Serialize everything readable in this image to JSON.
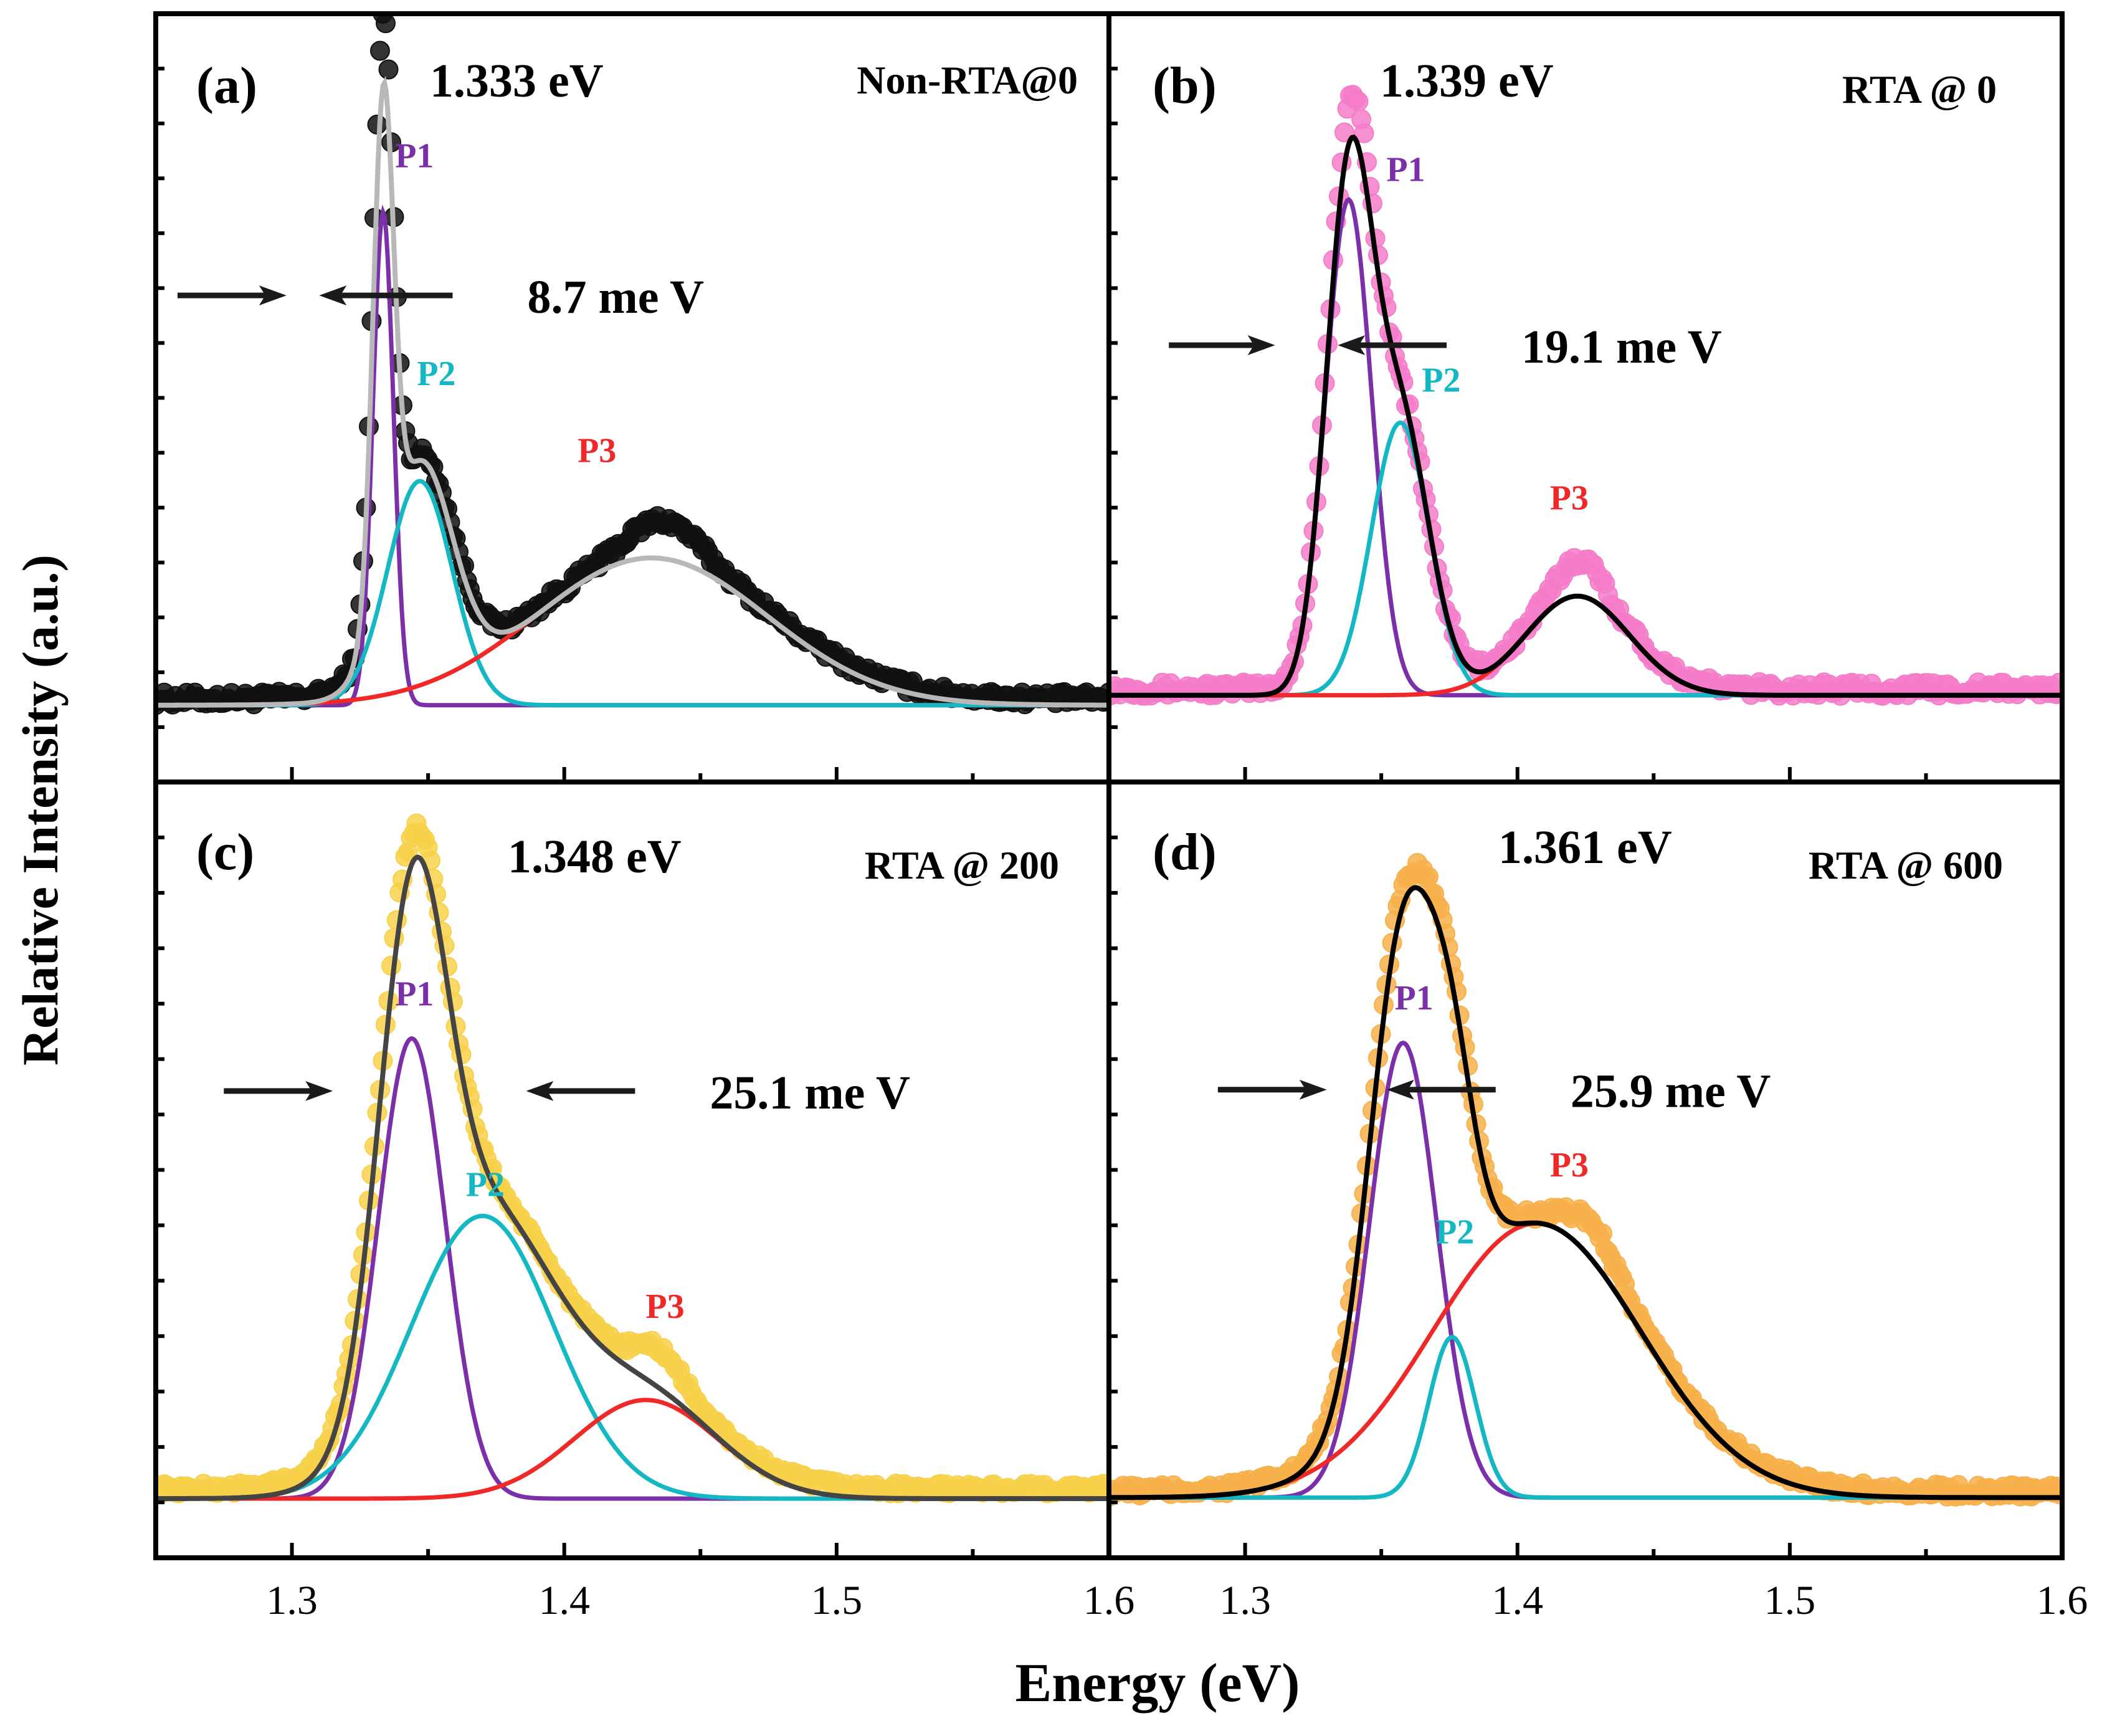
{
  "figure": {
    "ylabel": "Relative Intensity (a.u.)",
    "xlabel": "Energy (eV)",
    "colors": {
      "axis": "#000000",
      "p1": "#7b2fa8",
      "p2": "#14b8c2",
      "p3": "#f02828",
      "arrow": "#1a1a1a"
    }
  },
  "chart_data": [
    {
      "id": "a",
      "type": "line",
      "panel_label": "(a)",
      "peak_label": "1.333 eV",
      "condition": "Non-RTA@0",
      "fwhm_label": "8.7 me V",
      "xlim": [
        1.25,
        1.6
      ],
      "xticks": [
        1.3,
        1.4,
        1.5,
        1.6
      ],
      "ylim": [
        -0.12,
        1.08
      ],
      "baseline": 0.0,
      "exp_color": "#111111",
      "fit_color": "#b8b8b8",
      "fwhm_arrows": {
        "left": [
          1.258,
          1.298
        ],
        "right": [
          1.31,
          1.359
        ],
        "y": 0.64
      },
      "peaks": [
        {
          "name": "P1",
          "center": 1.3335,
          "amp": 0.77,
          "fwhm": 0.0089,
          "label_x": 1.345,
          "label_y": 0.84
        },
        {
          "name": "P2",
          "center": 1.347,
          "amp": 0.35,
          "fwhm": 0.028,
          "label_x": 1.353,
          "label_y": 0.5
        },
        {
          "name": "P3",
          "center": 1.432,
          "amp": 0.23,
          "fwhm": 0.1,
          "label_x": 1.412,
          "label_y": 0.38
        }
      ],
      "exp_noise": 0.02,
      "exp_bumps": [
        {
          "center": 1.333,
          "amp": 0.1,
          "fwhm": 0.007
        },
        {
          "center": 1.437,
          "amp": 0.05,
          "fwhm": 0.028
        }
      ],
      "exp_offset": 0.01
    },
    {
      "id": "b",
      "type": "line",
      "panel_label": "(b)",
      "peak_label": "1.339 eV",
      "condition": "RTA @ 0",
      "fwhm_label": "19.1 me V",
      "xlim": [
        1.25,
        1.6
      ],
      "xticks": [
        1.3,
        1.4,
        1.5,
        1.6
      ],
      "ylim": [
        -0.14,
        1.1
      ],
      "baseline": 0.0,
      "exp_color": "#f47cc9",
      "fit_color": "#000000",
      "fwhm_arrows": {
        "left": [
          1.272,
          1.311
        ],
        "right": [
          1.334,
          1.374
        ],
        "y": 0.565
      },
      "peaks": [
        {
          "name": "P1",
          "center": 1.338,
          "amp": 0.8,
          "fwhm": 0.02,
          "label_x": 1.359,
          "label_y": 0.83
        },
        {
          "name": "P2",
          "center": 1.357,
          "amp": 0.44,
          "fwhm": 0.025,
          "label_x": 1.372,
          "label_y": 0.49
        },
        {
          "name": "P3",
          "center": 1.422,
          "amp": 0.16,
          "fwhm": 0.045,
          "label_x": 1.419,
          "label_y": 0.3
        }
      ],
      "exp_noise": 0.022,
      "exp_bumps": [
        {
          "center": 1.341,
          "amp": 0.06,
          "fwhm": 0.012
        },
        {
          "center": 1.423,
          "amp": 0.05,
          "fwhm": 0.018
        }
      ],
      "exp_offset": 0.01
    },
    {
      "id": "c",
      "type": "line",
      "panel_label": "(c)",
      "peak_label": "1.348 eV",
      "condition": "RTA @ 200",
      "fwhm_label": "25.1 me V",
      "xlim": [
        1.25,
        1.6
      ],
      "xticks": [
        1.3,
        1.4,
        1.5,
        1.6
      ],
      "ylim": [
        -0.09,
        1.09
      ],
      "baseline": 0.0,
      "exp_color": "#f8d14a",
      "fit_color": "#444444",
      "fwhm_arrows": {
        "left": [
          1.275,
          1.315
        ],
        "right": [
          1.386,
          1.426
        ],
        "y": 0.62
      },
      "peaks": [
        {
          "name": "P1",
          "center": 1.344,
          "amp": 0.7,
          "fwhm": 0.029,
          "label_x": 1.345,
          "label_y": 0.75
        },
        {
          "name": "P2",
          "center": 1.37,
          "amp": 0.43,
          "fwhm": 0.062,
          "label_x": 1.371,
          "label_y": 0.46
        },
        {
          "name": "P3",
          "center": 1.43,
          "amp": 0.15,
          "fwhm": 0.062,
          "label_x": 1.437,
          "label_y": 0.275
        }
      ],
      "exp_noise": 0.015,
      "exp_bumps": [
        {
          "center": 1.345,
          "amp": 0.03,
          "fwhm": 0.02
        },
        {
          "center": 1.435,
          "amp": 0.045,
          "fwhm": 0.02
        }
      ],
      "exp_offset": 0.015
    },
    {
      "id": "d",
      "type": "line",
      "panel_label": "(d)",
      "peak_label": "1.361 eV",
      "condition": "RTA @ 600",
      "fwhm_label": "25.9 me V",
      "xlim": [
        1.25,
        1.6
      ],
      "xticks": [
        1.3,
        1.4,
        1.5,
        1.6
      ],
      "ylim": [
        -0.09,
        1.07
      ],
      "baseline": 0.0,
      "exp_color": "#f7b04a",
      "fit_color": "#000000",
      "fwhm_arrows": {
        "left": [
          1.29,
          1.33
        ],
        "right": [
          1.352,
          1.392
        ],
        "y": 0.61
      },
      "peaks": [
        {
          "name": "P1",
          "center": 1.358,
          "amp": 0.68,
          "fwhm": 0.029,
          "label_x": 1.362,
          "label_y": 0.73
        },
        {
          "name": "P2",
          "center": 1.376,
          "amp": 0.24,
          "fwhm": 0.02,
          "label_x": 1.377,
          "label_y": 0.38
        },
        {
          "name": "P3",
          "center": 1.407,
          "amp": 0.41,
          "fwhm": 0.09,
          "label_x": 1.419,
          "label_y": 0.48
        }
      ],
      "exp_noise": 0.018,
      "exp_bumps": [
        {
          "center": 1.365,
          "amp": 0.02,
          "fwhm": 0.02
        },
        {
          "center": 1.428,
          "amp": 0.045,
          "fwhm": 0.02
        }
      ],
      "exp_offset": 0.01
    }
  ]
}
